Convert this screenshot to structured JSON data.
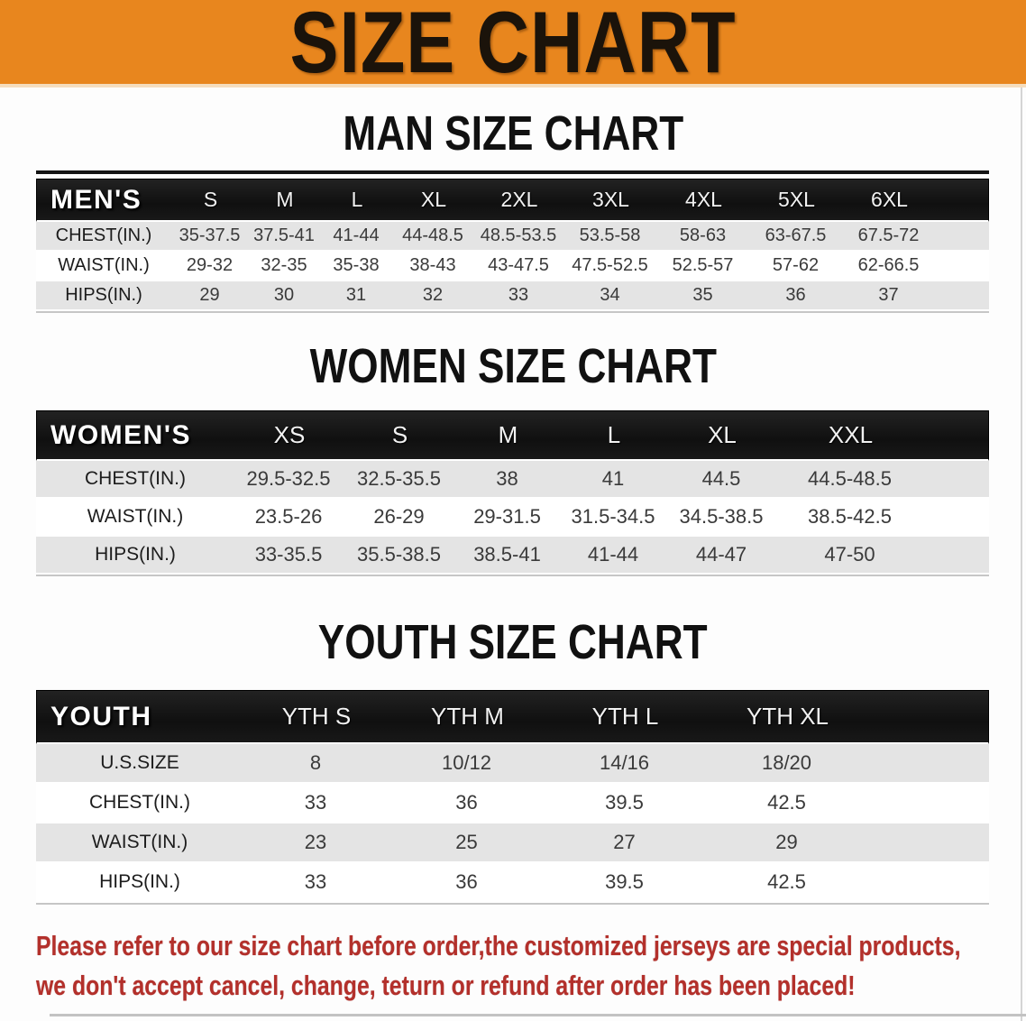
{
  "colors": {
    "banner_bg": "#e8861e",
    "header_bg": "#141414",
    "stripe": "#e4e4e4",
    "disclaimer": "#b3302b"
  },
  "banner": {
    "title": "SIZE CHART"
  },
  "sections": {
    "men": {
      "heading": "MAN SIZE CHART",
      "corner": "MEN'S",
      "columns": [
        "S",
        "M",
        "L",
        "XL",
        "2XL",
        "3XL",
        "4XL",
        "5XL",
        "6XL"
      ],
      "rows": [
        {
          "label": "CHEST(IN.)",
          "values": [
            "35-37.5",
            "37.5-41",
            "41-44",
            "44-48.5",
            "48.5-53.5",
            "53.5-58",
            "58-63",
            "63-67.5",
            "67.5-72"
          ]
        },
        {
          "label": "WAIST(IN.)",
          "values": [
            "29-32",
            "32-35",
            "35-38",
            "38-43",
            "43-47.5",
            "47.5-52.5",
            "52.5-57",
            "57-62",
            "62-66.5"
          ]
        },
        {
          "label": "HIPS(IN.)",
          "values": [
            "29",
            "30",
            "31",
            "32",
            "33",
            "34",
            "35",
            "36",
            "37"
          ]
        }
      ]
    },
    "women": {
      "heading": "WOMEN SIZE CHART",
      "corner": "WOMEN'S",
      "columns": [
        "XS",
        "S",
        "M",
        "L",
        "XL",
        "XXL"
      ],
      "rows": [
        {
          "label": "CHEST(IN.)",
          "values": [
            "29.5-32.5",
            "32.5-35.5",
            "38",
            "41",
            "44.5",
            "44.5-48.5"
          ]
        },
        {
          "label": "WAIST(IN.)",
          "values": [
            "23.5-26",
            "26-29",
            "29-31.5",
            "31.5-34.5",
            "34.5-38.5",
            "38.5-42.5"
          ]
        },
        {
          "label": "HIPS(IN.)",
          "values": [
            "33-35.5",
            "35.5-38.5",
            "38.5-41",
            "41-44",
            "44-47",
            "47-50"
          ]
        }
      ]
    },
    "youth": {
      "heading": "YOUTH SIZE CHART",
      "corner": "YOUTH",
      "columns": [
        "YTH S",
        "YTH M",
        "YTH L",
        "YTH XL"
      ],
      "rows": [
        {
          "label": "U.S.SIZE",
          "values": [
            "8",
            "10/12",
            "14/16",
            "18/20"
          ]
        },
        {
          "label": "CHEST(IN.)",
          "values": [
            "33",
            "36",
            "39.5",
            "42.5"
          ]
        },
        {
          "label": "WAIST(IN.)",
          "values": [
            "23",
            "25",
            "27",
            "29"
          ]
        },
        {
          "label": "HIPS(IN.)",
          "values": [
            "33",
            "36",
            "39.5",
            "42.5"
          ]
        }
      ]
    }
  },
  "disclaimer": {
    "line1": "Please refer to our size chart before order,the customized jerseys are special products,",
    "line2": "we don't accept cancel, change, teturn or refund after order has been placed!"
  }
}
